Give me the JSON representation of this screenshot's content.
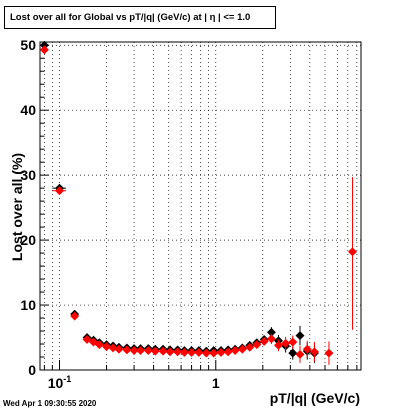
{
  "chart_data": {
    "type": "scatter",
    "title": "Lost over all for Global vs pT/|q| (GeV/c) at |  η | <= 1.0",
    "xlabel": "pT/|q| (GeV/c)",
    "ylabel": "Lost over all (%)",
    "xscale": "log",
    "xlim": [
      0.075,
      8.5
    ],
    "ylim": [
      0,
      50.5
    ],
    "x_tick_labels": [
      "10^{-1}",
      "1"
    ],
    "y_tick_values": [
      0,
      10,
      20,
      30,
      40,
      50
    ],
    "grid": true,
    "series": [
      {
        "color": "#000000",
        "marker": "diamond",
        "points": [
          {
            "x": 0.08,
            "y": 50.0,
            "xerr_lo": 0.004,
            "xerr_hi": 0.005,
            "yerr": 0.4
          },
          {
            "x": 0.1,
            "y": 28.0,
            "xerr_lo": 0.01,
            "xerr_hi": 0.01,
            "yerr": 0.4
          },
          {
            "x": 0.125,
            "y": 8.6,
            "xerr_lo": 0.005,
            "xerr_hi": 0.005,
            "yerr": 0.3
          },
          {
            "x": 0.15,
            "y": 5.0
          },
          {
            "x": 0.165,
            "y": 4.6
          },
          {
            "x": 0.18,
            "y": 4.2
          },
          {
            "x": 0.2,
            "y": 3.9
          },
          {
            "x": 0.22,
            "y": 3.7
          },
          {
            "x": 0.24,
            "y": 3.5
          },
          {
            "x": 0.27,
            "y": 3.4
          },
          {
            "x": 0.3,
            "y": 3.3
          },
          {
            "x": 0.33,
            "y": 3.3
          },
          {
            "x": 0.37,
            "y": 3.3
          },
          {
            "x": 0.41,
            "y": 3.2
          },
          {
            "x": 0.46,
            "y": 3.2
          },
          {
            "x": 0.51,
            "y": 3.1
          },
          {
            "x": 0.57,
            "y": 3.1
          },
          {
            "x": 0.63,
            "y": 3.0
          },
          {
            "x": 0.7,
            "y": 3.0
          },
          {
            "x": 0.78,
            "y": 3.0
          },
          {
            "x": 0.87,
            "y": 2.9
          },
          {
            "x": 0.97,
            "y": 3.0
          },
          {
            "x": 1.08,
            "y": 3.0
          },
          {
            "x": 1.2,
            "y": 3.1
          },
          {
            "x": 1.33,
            "y": 3.2
          },
          {
            "x": 1.48,
            "y": 3.4
          },
          {
            "x": 1.65,
            "y": 3.8
          },
          {
            "x": 1.83,
            "y": 4.2
          },
          {
            "x": 2.04,
            "y": 4.7
          },
          {
            "x": 2.27,
            "y": 5.8,
            "yerr": 0.8
          },
          {
            "x": 2.52,
            "y": 4.5,
            "yerr": 0.9
          },
          {
            "x": 2.8,
            "y": 3.7,
            "yerr": 1.0
          },
          {
            "x": 3.11,
            "y": 2.6,
            "yerr": 1.0
          },
          {
            "x": 3.46,
            "y": 5.3,
            "yerr": 1.5
          },
          {
            "x": 3.85,
            "y": 2.9,
            "yerr": 1.3
          },
          {
            "x": 4.28,
            "y": 2.6,
            "yerr": 1.5
          }
        ]
      },
      {
        "color": "#ff0000",
        "marker": "diamond",
        "points": [
          {
            "x": 0.08,
            "y": 49.3,
            "xerr_lo": 0.004,
            "xerr_hi": 0.005,
            "yerr": 0.4
          },
          {
            "x": 0.1,
            "y": 27.6,
            "xerr_lo": 0.01,
            "xerr_hi": 0.01,
            "yerr": 0.4
          },
          {
            "x": 0.125,
            "y": 8.3,
            "xerr_lo": 0.005,
            "xerr_hi": 0.005,
            "yerr": 0.3
          },
          {
            "x": 0.15,
            "y": 4.7
          },
          {
            "x": 0.165,
            "y": 4.3
          },
          {
            "x": 0.18,
            "y": 3.9
          },
          {
            "x": 0.2,
            "y": 3.6
          },
          {
            "x": 0.22,
            "y": 3.4
          },
          {
            "x": 0.24,
            "y": 3.2
          },
          {
            "x": 0.27,
            "y": 3.1
          },
          {
            "x": 0.3,
            "y": 3.0
          },
          {
            "x": 0.33,
            "y": 3.0
          },
          {
            "x": 0.37,
            "y": 3.0
          },
          {
            "x": 0.41,
            "y": 2.9
          },
          {
            "x": 0.46,
            "y": 2.9
          },
          {
            "x": 0.51,
            "y": 2.8
          },
          {
            "x": 0.57,
            "y": 2.8
          },
          {
            "x": 0.63,
            "y": 2.7
          },
          {
            "x": 0.7,
            "y": 2.7
          },
          {
            "x": 0.78,
            "y": 2.7
          },
          {
            "x": 0.87,
            "y": 2.6
          },
          {
            "x": 0.97,
            "y": 2.6
          },
          {
            "x": 1.08,
            "y": 2.7
          },
          {
            "x": 1.2,
            "y": 2.8
          },
          {
            "x": 1.33,
            "y": 3.0
          },
          {
            "x": 1.48,
            "y": 3.2
          },
          {
            "x": 1.65,
            "y": 3.5
          },
          {
            "x": 1.83,
            "y": 3.9
          },
          {
            "x": 2.04,
            "y": 4.4
          },
          {
            "x": 2.27,
            "y": 4.8,
            "yerr": 0.8
          },
          {
            "x": 2.52,
            "y": 3.8,
            "yerr": 0.9
          },
          {
            "x": 2.8,
            "y": 4.1,
            "yerr": 1.0
          },
          {
            "x": 3.11,
            "y": 4.3,
            "yerr": 1.0
          },
          {
            "x": 3.46,
            "y": 2.4,
            "yerr": 1.3
          },
          {
            "x": 3.85,
            "y": 3.2,
            "yerr": 1.3
          },
          {
            "x": 4.28,
            "y": 2.8,
            "yerr": 1.5
          },
          {
            "x": 5.3,
            "y": 2.6,
            "yerr": 1.8
          },
          {
            "x": 7.5,
            "y": 18.2,
            "yerr_lo": 12.0,
            "yerr_hi": 11.5
          }
        ]
      }
    ]
  },
  "footer": {
    "timestamp": "Wed Apr  1 09:30:55 2020"
  }
}
